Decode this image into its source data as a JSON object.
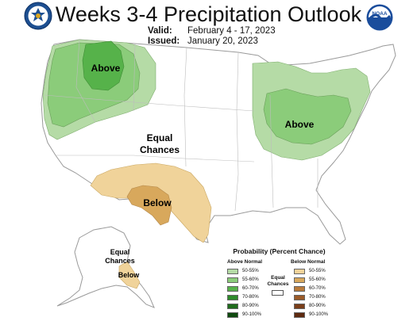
{
  "header": {
    "title": "Weeks 3-4 Precipitation Outlook",
    "valid_label": "Valid:",
    "valid_value": "February 4 - 17, 2023",
    "issued_label": "Issued:",
    "issued_value": "January 20, 2023"
  },
  "logos": {
    "left": "department-of-commerce-seal",
    "right": "noaa-logo",
    "right_text": "NOAA"
  },
  "map": {
    "labels": {
      "west_above": "Above",
      "east_above": "Above",
      "equal_line1": "Equal",
      "equal_line2": "Chances",
      "below": "Below",
      "alaska_equal_line1": "Equal",
      "alaska_equal_line2": "Chances",
      "alaska_below": "Below"
    }
  },
  "legend": {
    "title": "Probability (Percent Chance)",
    "above_header": "Above Normal",
    "below_header": "Below Normal",
    "equal_line1": "Equal",
    "equal_line2": "Chances",
    "above": [
      {
        "label": "50-55%",
        "color": "#b5dba6"
      },
      {
        "label": "55-60%",
        "color": "#8bcc7a"
      },
      {
        "label": "60-70%",
        "color": "#56b24a"
      },
      {
        "label": "70-80%",
        "color": "#2e8a2a"
      },
      {
        "label": "80-90%",
        "color": "#1f6b1c"
      },
      {
        "label": "90-100%",
        "color": "#0f4a0f"
      }
    ],
    "below": [
      {
        "label": "50-55%",
        "color": "#f0d39a"
      },
      {
        "label": "55-60%",
        "color": "#d8a85c"
      },
      {
        "label": "60-70%",
        "color": "#b97a3a"
      },
      {
        "label": "70-80%",
        "color": "#9a5a28"
      },
      {
        "label": "80-90%",
        "color": "#7a3e1a"
      },
      {
        "label": "90-100%",
        "color": "#5e2a10"
      }
    ]
  }
}
